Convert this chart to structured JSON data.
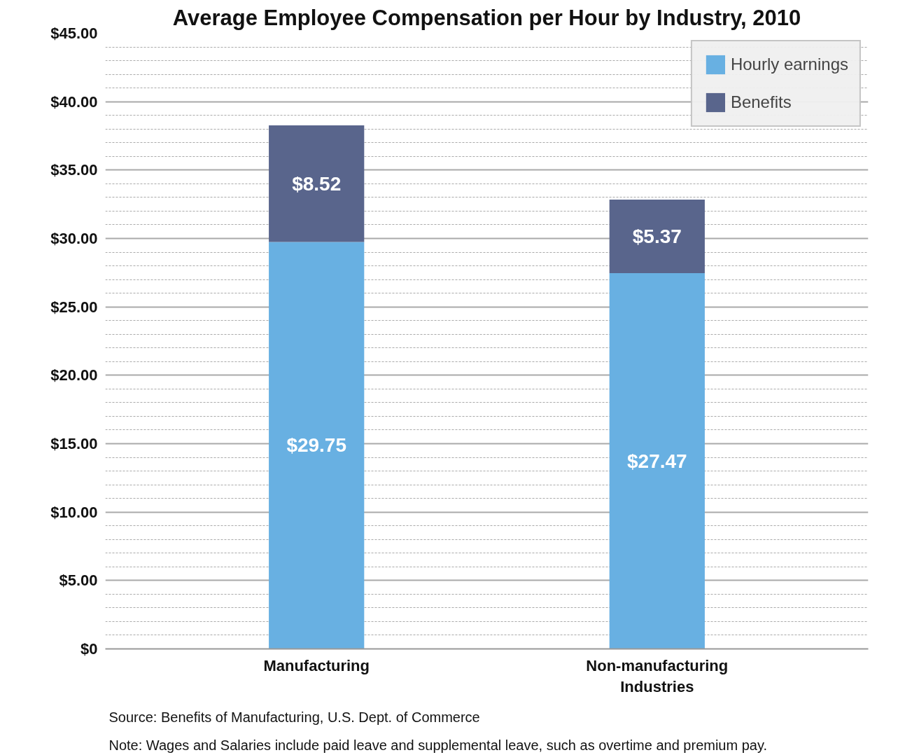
{
  "chart_data": {
    "type": "bar",
    "stacked": true,
    "title": "Average Employee Compensation per Hour by Industry, 2010",
    "categories": [
      "Manufacturing",
      "Non-manufacturing Industries"
    ],
    "series": [
      {
        "name": "Hourly earnings",
        "color": "#68b0e2",
        "values": [
          29.75,
          27.47
        ],
        "value_labels": [
          "$29.75",
          "$27.47"
        ]
      },
      {
        "name": "Benefits",
        "color": "#59658c",
        "values": [
          8.52,
          5.37
        ],
        "value_labels": [
          "$8.52",
          "$5.37"
        ]
      }
    ],
    "ylim": [
      0,
      45
    ],
    "yticks": [
      {
        "value": 0,
        "label": "$0"
      },
      {
        "value": 5,
        "label": "$5.00"
      },
      {
        "value": 10,
        "label": "$10.00"
      },
      {
        "value": 15,
        "label": "$15.00"
      },
      {
        "value": 20,
        "label": "$20.00"
      },
      {
        "value": 25,
        "label": "$25.00"
      },
      {
        "value": 30,
        "label": "$30.00"
      },
      {
        "value": 35,
        "label": "$35.00"
      },
      {
        "value": 40,
        "label": "$40.00"
      },
      {
        "value": 45,
        "label": "$45.00"
      }
    ],
    "grid": "y",
    "legend": "top right",
    "annotations": [
      "Source: Benefits of Manufacturing, U.S. Dept. of Commerce",
      "Note: Wages and Salaries include paid leave and supplemental leave, such as overtime and premium pay."
    ]
  }
}
